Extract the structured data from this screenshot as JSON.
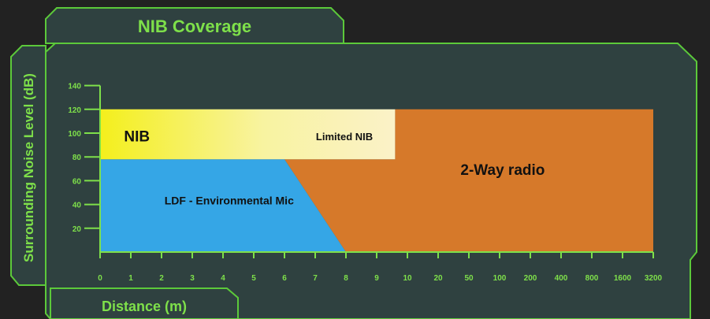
{
  "title": "NIB Coverage",
  "colors": {
    "background": "#222222",
    "panel": "#2f4140",
    "border": "#5cc93a",
    "text": "#7ee04a",
    "nib_yellow": "#f4ef1c",
    "limited_nib": "#fbf2c8",
    "ldf_blue": "#35a6e6",
    "radio_orange": "#d6792a"
  },
  "chart_data": {
    "type": "area",
    "title": "NIB Coverage",
    "xlabel": "Distance (m)",
    "ylabel": "Surrounding Noise Level (dB)",
    "x_ticks": [
      "0",
      "1",
      "2",
      "3",
      "4",
      "5",
      "6",
      "7",
      "8",
      "9",
      "10",
      "20",
      "50",
      "100",
      "200",
      "400",
      "800",
      "1600",
      "3200"
    ],
    "y_ticks": [
      20,
      40,
      60,
      80,
      100,
      120,
      140
    ],
    "ylim": [
      0,
      140
    ],
    "regions": [
      {
        "label": "NIB",
        "color": "#f4ef1c",
        "polygon": [
          [
            0,
            78
          ],
          [
            6,
            78
          ],
          [
            9.6,
            78
          ],
          [
            9.6,
            120
          ],
          [
            0,
            120
          ]
        ]
      },
      {
        "label": "Limited NIB",
        "color": "#fbf2c8"
      },
      {
        "label": "LDF - Environmental Mic",
        "color": "#35a6e6",
        "polygon": [
          [
            0,
            0
          ],
          [
            8,
            0
          ],
          [
            6,
            78
          ],
          [
            0,
            78
          ]
        ]
      },
      {
        "label": "2-Way radio",
        "color": "#d6792a",
        "polygon": [
          [
            8,
            0
          ],
          [
            3200,
            0
          ],
          [
            3200,
            120
          ],
          [
            9.6,
            120
          ],
          [
            9.6,
            78
          ],
          [
            6,
            78
          ]
        ]
      }
    ]
  }
}
